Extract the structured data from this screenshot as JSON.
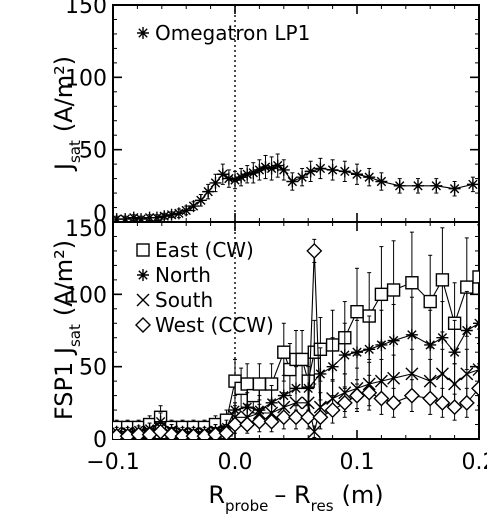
{
  "chart_data": [
    {
      "type": "line",
      "panel": "top",
      "ylabel_main": "J",
      "ylabel_sub": "sat",
      "ylabel_unit": "(A/m²)",
      "ylim": [
        0,
        150
      ],
      "yticks": [
        "0",
        "50",
        "100",
        "150"
      ],
      "xlim": [
        -0.1,
        0.2
      ],
      "series": [
        {
          "name": "Omegatron LP1",
          "marker": "asterisk",
          "x": [
            -0.097,
            -0.09,
            -0.083,
            -0.077,
            -0.07,
            -0.064,
            -0.058,
            -0.052,
            -0.046,
            -0.04,
            -0.034,
            -0.028,
            -0.022,
            -0.016,
            -0.01,
            -0.005,
            0.0,
            0.005,
            0.01,
            0.015,
            0.02,
            0.025,
            0.03,
            0.035,
            0.04,
            0.047,
            0.055,
            0.062,
            0.07,
            0.08,
            0.09,
            0.1,
            0.11,
            0.12,
            0.135,
            0.15,
            0.165,
            0.18,
            0.195
          ],
          "y": [
            2,
            2,
            3,
            2,
            3,
            3,
            4,
            5,
            6,
            8,
            11,
            15,
            21,
            27,
            33,
            30,
            29,
            31,
            33,
            34,
            36,
            38,
            37,
            39,
            36,
            28,
            31,
            35,
            37,
            36,
            35,
            33,
            31,
            28,
            25,
            25,
            25,
            23,
            26
          ],
          "err": [
            2,
            2,
            2,
            2,
            2,
            2,
            2,
            2,
            3,
            3,
            3,
            4,
            5,
            6,
            7,
            6,
            6,
            6,
            6,
            7,
            7,
            8,
            8,
            8,
            7,
            6,
            6,
            7,
            7,
            7,
            7,
            7,
            6,
            6,
            5,
            5,
            5,
            5,
            5
          ]
        }
      ]
    },
    {
      "type": "line",
      "panel": "bottom",
      "ylabel_main": "FSP1 J",
      "ylabel_sub": "sat",
      "ylabel_unit": "(A/m²)",
      "ylim": [
        0,
        150
      ],
      "yticks": [
        "0",
        "50",
        "100",
        "150"
      ],
      "xlim": [
        -0.1,
        0.2
      ],
      "xticks": [
        "-0.1",
        "0.0",
        "0.1",
        "0.2"
      ],
      "xlabel_main": "R",
      "xlabel_sub1": "probe",
      "xlabel_minus": "– R",
      "xlabel_sub2": "res",
      "xlabel_unit": "(m)",
      "series": [
        {
          "name": "East (CW)",
          "marker": "square",
          "x": [
            -0.097,
            -0.088,
            -0.079,
            -0.07,
            -0.061,
            -0.052,
            -0.043,
            -0.034,
            -0.025,
            -0.016,
            -0.007,
            0.0,
            0.005,
            0.01,
            0.015,
            0.02,
            0.03,
            0.04,
            0.045,
            0.05,
            0.055,
            0.06,
            0.065,
            0.07,
            0.08,
            0.09,
            0.1,
            0.11,
            0.12,
            0.13,
            0.145,
            0.16,
            0.17,
            0.18,
            0.19,
            0.2
          ],
          "y": [
            8,
            8,
            8,
            10,
            15,
            8,
            8,
            8,
            8,
            10,
            13,
            40,
            35,
            38,
            30,
            38,
            38,
            60,
            48,
            55,
            55,
            40,
            60,
            62,
            65,
            70,
            88,
            85,
            100,
            103,
            108,
            95,
            110,
            80,
            105,
            112
          ],
          "err": [
            5,
            5,
            5,
            6,
            8,
            5,
            5,
            5,
            5,
            6,
            7,
            15,
            14,
            14,
            12,
            14,
            14,
            20,
            18,
            20,
            20,
            16,
            22,
            22,
            24,
            25,
            30,
            30,
            33,
            34,
            35,
            32,
            36,
            28,
            34,
            36
          ]
        },
        {
          "name": "North",
          "marker": "asterisk",
          "x": [
            -0.097,
            -0.088,
            -0.079,
            -0.07,
            -0.061,
            -0.052,
            -0.043,
            -0.034,
            -0.025,
            -0.016,
            -0.007,
            0.0,
            0.01,
            0.02,
            0.03,
            0.04,
            0.05,
            0.06,
            0.07,
            0.08,
            0.09,
            0.1,
            0.11,
            0.12,
            0.13,
            0.145,
            0.16,
            0.17,
            0.18,
            0.19,
            0.2
          ],
          "y": [
            5,
            5,
            6,
            7,
            12,
            6,
            5,
            5,
            5,
            6,
            8,
            20,
            22,
            20,
            25,
            30,
            35,
            35,
            45,
            50,
            58,
            60,
            62,
            65,
            68,
            72,
            65,
            70,
            60,
            75,
            80
          ],
          "err": [
            3,
            3,
            3,
            4,
            6,
            4,
            3,
            3,
            3,
            4,
            5,
            10,
            10,
            10,
            12,
            14,
            15,
            15,
            18,
            20,
            22,
            22,
            23,
            24,
            25,
            26,
            24,
            25,
            22,
            27,
            28
          ]
        },
        {
          "name": "South",
          "marker": "cross",
          "x": [
            -0.097,
            -0.088,
            -0.079,
            -0.07,
            -0.061,
            -0.052,
            -0.043,
            -0.034,
            -0.025,
            -0.016,
            -0.007,
            0.0,
            0.01,
            0.02,
            0.03,
            0.04,
            0.05,
            0.06,
            0.065,
            0.07,
            0.08,
            0.09,
            0.1,
            0.11,
            0.12,
            0.13,
            0.145,
            0.16,
            0.17,
            0.18,
            0.19,
            0.2
          ],
          "y": [
            3,
            4,
            4,
            5,
            8,
            5,
            4,
            4,
            4,
            5,
            6,
            15,
            15,
            18,
            18,
            22,
            25,
            25,
            5,
            22,
            28,
            32,
            35,
            38,
            40,
            42,
            45,
            40,
            45,
            38,
            45,
            48
          ],
          "err": [
            2,
            2,
            2,
            3,
            4,
            3,
            2,
            2,
            2,
            3,
            4,
            8,
            8,
            9,
            9,
            10,
            11,
            11,
            4,
            10,
            12,
            13,
            14,
            15,
            15,
            16,
            17,
            15,
            17,
            14,
            17,
            18
          ]
        },
        {
          "name": "West (CCW)",
          "marker": "diamond",
          "x": [
            -0.097,
            -0.088,
            -0.079,
            -0.07,
            -0.061,
            -0.052,
            -0.043,
            -0.034,
            -0.025,
            -0.016,
            -0.007,
            0.0,
            0.01,
            0.02,
            0.03,
            0.04,
            0.05,
            0.06,
            0.065,
            0.07,
            0.08,
            0.09,
            0.1,
            0.11,
            0.12,
            0.13,
            0.145,
            0.16,
            0.17,
            0.18,
            0.19,
            0.2
          ],
          "y": [
            2,
            2,
            3,
            3,
            5,
            3,
            2,
            2,
            2,
            3,
            4,
            10,
            10,
            12,
            12,
            15,
            15,
            15,
            130,
            15,
            20,
            25,
            30,
            32,
            28,
            25,
            30,
            28,
            25,
            22,
            25,
            35
          ],
          "err": [
            2,
            2,
            2,
            2,
            3,
            2,
            2,
            2,
            2,
            2,
            3,
            6,
            6,
            7,
            7,
            8,
            8,
            8,
            8,
            8,
            9,
            10,
            11,
            12,
            11,
            10,
            11,
            11,
            10,
            9,
            10,
            12
          ]
        }
      ]
    }
  ]
}
